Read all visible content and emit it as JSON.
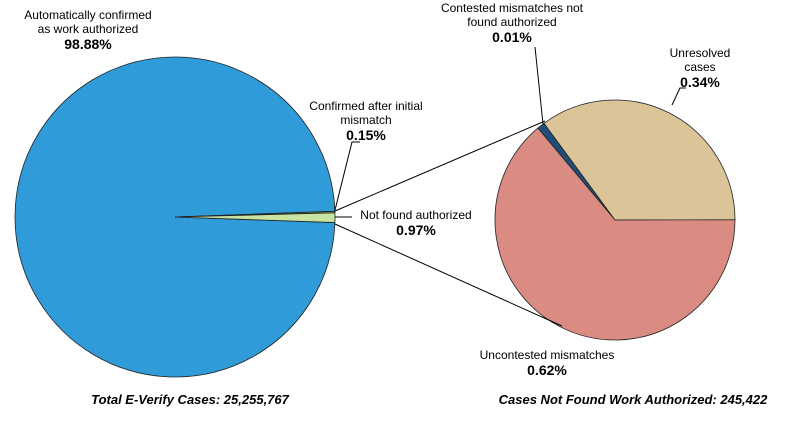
{
  "chart_data": [
    {
      "type": "pie",
      "title": "Total E-Verify Cases: 25,255,767",
      "categories": [
        "Automatically confirmed as work authorized",
        "Confirmed after initial mismatch",
        "Not found authorized"
      ],
      "values": [
        98.88,
        0.15,
        0.97
      ],
      "value_labels": [
        "98.88%",
        "0.15%",
        "0.97%"
      ],
      "colors": [
        "#2f9bd9",
        "#8fc45a",
        "#c8e4a0"
      ]
    },
    {
      "type": "pie",
      "title": "Cases Not Found Work Authorized: 245,422",
      "categories": [
        "Contested mismatches not found authorized",
        "Unresolved cases",
        "Uncontested mismatches"
      ],
      "values": [
        0.01,
        0.34,
        0.62
      ],
      "value_labels": [
        "0.01%",
        "0.34%",
        "0.62%"
      ],
      "colors": [
        "#1f4e79",
        "#dbc497",
        "#db8c82"
      ]
    }
  ]
}
